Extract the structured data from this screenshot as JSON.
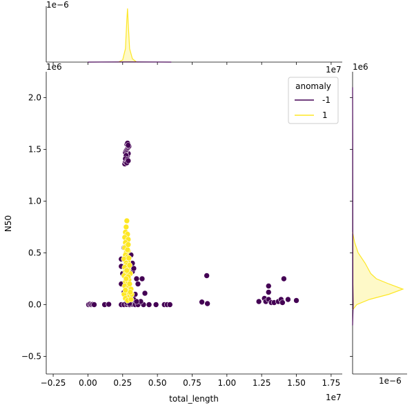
{
  "chart_data": {
    "type": "scatter",
    "xlabel": "total_length",
    "ylabel": "N50",
    "x_offset_label": "1e7",
    "y_offset_label": "1e6",
    "xlim": [
      -0.3,
      1.83
    ],
    "ylim": [
      -0.67,
      2.25
    ],
    "x_ticks": [
      -0.25,
      0.0,
      0.25,
      0.5,
      0.75,
      1.0,
      1.25,
      1.5,
      1.75
    ],
    "x_tick_labels": [
      "−0.25",
      "0.00",
      "0.25",
      "0.50",
      "0.75",
      "1.00",
      "1.25",
      "1.50",
      "1.75"
    ],
    "y_ticks": [
      -0.5,
      0.0,
      0.5,
      1.0,
      1.5,
      2.0
    ],
    "y_tick_labels": [
      "−0.5",
      "0.0",
      "0.5",
      "1.0",
      "1.5",
      "2.0"
    ],
    "legend": {
      "title": "anomaly",
      "placement": "top-right",
      "entries": [
        {
          "label": "-1",
          "color": "#440154"
        },
        {
          "label": "1",
          "color": "#fde725"
        }
      ]
    },
    "series": [
      {
        "name": "-1",
        "color": "#440154",
        "points": [
          [
            0.005,
            0.0
          ],
          [
            0.015,
            0.005
          ],
          [
            0.025,
            0.0
          ],
          [
            0.035,
            0.003
          ],
          [
            0.045,
            0.0
          ],
          [
            0.12,
            0.0
          ],
          [
            0.15,
            0.003
          ],
          [
            0.24,
            0.0
          ],
          [
            0.26,
            0.0
          ],
          [
            0.28,
            0.002
          ],
          [
            0.3,
            0.0
          ],
          [
            0.32,
            0.004
          ],
          [
            0.34,
            0.0
          ],
          [
            0.36,
            0.0
          ],
          [
            0.4,
            0.0
          ],
          [
            0.44,
            0.0
          ],
          [
            0.49,
            0.0
          ],
          [
            0.55,
            0.0
          ],
          [
            0.57,
            0.0
          ],
          [
            0.59,
            0.0
          ],
          [
            0.82,
            0.025
          ],
          [
            0.86,
            0.01
          ],
          [
            0.855,
            0.28
          ],
          [
            1.23,
            0.03
          ],
          [
            1.27,
            0.06
          ],
          [
            1.28,
            0.03
          ],
          [
            1.3,
            0.18
          ],
          [
            1.3,
            0.12
          ],
          [
            1.3,
            0.05
          ],
          [
            1.32,
            0.02
          ],
          [
            1.34,
            0.02
          ],
          [
            1.37,
            0.03
          ],
          [
            1.39,
            0.05
          ],
          [
            1.4,
            0.02
          ],
          [
            1.41,
            0.25
          ],
          [
            1.44,
            0.05
          ],
          [
            1.5,
            0.04
          ],
          [
            0.24,
            0.44
          ],
          [
            0.24,
            0.37
          ],
          [
            0.25,
            0.3
          ],
          [
            0.24,
            0.2
          ],
          [
            0.26,
            0.12
          ],
          [
            0.27,
            0.08
          ],
          [
            0.28,
            0.02
          ],
          [
            0.32,
            0.32
          ],
          [
            0.33,
            0.35
          ],
          [
            0.34,
            0.1
          ],
          [
            0.35,
            0.25
          ],
          [
            0.36,
            0.2
          ],
          [
            0.38,
            0.03
          ],
          [
            0.39,
            0.25
          ],
          [
            0.41,
            0.11
          ],
          [
            0.27,
            0.6
          ],
          [
            0.26,
            0.55
          ],
          [
            0.28,
            0.45
          ],
          [
            0.31,
            0.48
          ],
          [
            0.32,
            0.4
          ],
          [
            0.28,
            0.05
          ],
          [
            0.3,
            0.01
          ],
          [
            0.33,
            0.05
          ],
          [
            0.35,
            0.03
          ],
          [
            0.265,
            1.36
          ],
          [
            0.27,
            1.38
          ],
          [
            0.275,
            1.4
          ],
          [
            0.28,
            1.42
          ],
          [
            0.285,
            1.44
          ],
          [
            0.29,
            1.46
          ],
          [
            0.27,
            1.47
          ],
          [
            0.275,
            1.49
          ],
          [
            0.28,
            1.5
          ],
          [
            0.285,
            1.51
          ],
          [
            0.29,
            1.52
          ],
          [
            0.295,
            1.53
          ],
          [
            0.28,
            1.55
          ],
          [
            0.285,
            1.56
          ],
          [
            0.29,
            1.54
          ],
          [
            0.275,
            1.44
          ],
          [
            0.27,
            1.41
          ],
          [
            0.285,
            1.4
          ],
          [
            0.28,
            1.37
          ],
          [
            0.29,
            1.39
          ]
        ]
      },
      {
        "name": "1",
        "color": "#fde725",
        "points": [
          [
            0.28,
            0.81
          ],
          [
            0.275,
            0.75
          ],
          [
            0.27,
            0.7
          ],
          [
            0.285,
            0.68
          ],
          [
            0.265,
            0.65
          ],
          [
            0.29,
            0.63
          ],
          [
            0.27,
            0.6
          ],
          [
            0.28,
            0.57
          ],
          [
            0.265,
            0.55
          ],
          [
            0.29,
            0.52
          ],
          [
            0.275,
            0.5
          ],
          [
            0.27,
            0.48
          ],
          [
            0.285,
            0.46
          ],
          [
            0.26,
            0.44
          ],
          [
            0.29,
            0.42
          ],
          [
            0.275,
            0.4
          ],
          [
            0.28,
            0.38
          ],
          [
            0.265,
            0.36
          ],
          [
            0.29,
            0.34
          ],
          [
            0.27,
            0.32
          ],
          [
            0.285,
            0.3
          ],
          [
            0.26,
            0.28
          ],
          [
            0.28,
            0.26
          ],
          [
            0.295,
            0.24
          ],
          [
            0.27,
            0.22
          ],
          [
            0.285,
            0.2
          ],
          [
            0.265,
            0.18
          ],
          [
            0.29,
            0.16
          ],
          [
            0.275,
            0.14
          ],
          [
            0.28,
            0.12
          ],
          [
            0.26,
            0.1
          ],
          [
            0.3,
            0.08
          ],
          [
            0.27,
            0.06
          ],
          [
            0.285,
            0.04
          ],
          [
            0.31,
            0.05
          ],
          [
            0.3,
            0.2
          ],
          [
            0.305,
            0.3
          ],
          [
            0.31,
            0.15
          ],
          [
            0.315,
            0.1
          ],
          [
            0.295,
            0.45
          ],
          [
            0.3,
            0.38
          ],
          [
            0.29,
            0.27
          ],
          [
            0.305,
            0.12
          ],
          [
            0.27,
            0.14
          ],
          [
            0.275,
            0.25
          ],
          [
            0.28,
            0.33
          ],
          [
            0.285,
            0.53
          ],
          [
            0.29,
            0.58
          ]
        ]
      }
    ],
    "marginal_x": {
      "offset_label": "1e−6",
      "series": [
        {
          "name": "1",
          "color": "#fde725",
          "x": [
            0.22,
            0.25,
            0.27,
            0.28,
            0.285,
            0.29,
            0.3,
            0.32,
            0.35
          ],
          "density": [
            0.0,
            0.2,
            1.2,
            3.8,
            4.8,
            3.5,
            1.2,
            0.3,
            0.0
          ]
        },
        {
          "name": "-1",
          "color": "#440154",
          "x": [
            0.0,
            0.3,
            0.6
          ],
          "density": [
            0.0,
            0.02,
            0.0
          ]
        }
      ]
    },
    "marginal_y": {
      "offset_label": "1e−6",
      "series": [
        {
          "name": "1",
          "color": "#fde725",
          "y": [
            -0.05,
            0.0,
            0.05,
            0.1,
            0.15,
            0.2,
            0.25,
            0.3,
            0.4,
            0.5,
            0.6,
            0.7
          ],
          "density": [
            0.0,
            0.3,
            1.2,
            2.6,
            3.6,
            2.6,
            1.7,
            1.3,
            0.9,
            0.4,
            0.15,
            0.0
          ]
        },
        {
          "name": "-1",
          "color": "#440154",
          "y": [
            -0.2,
            0.0,
            0.2,
            1.4,
            1.6,
            2.1
          ],
          "density": [
            0.0,
            0.04,
            0.02,
            0.01,
            0.01,
            0.0
          ]
        }
      ]
    }
  }
}
